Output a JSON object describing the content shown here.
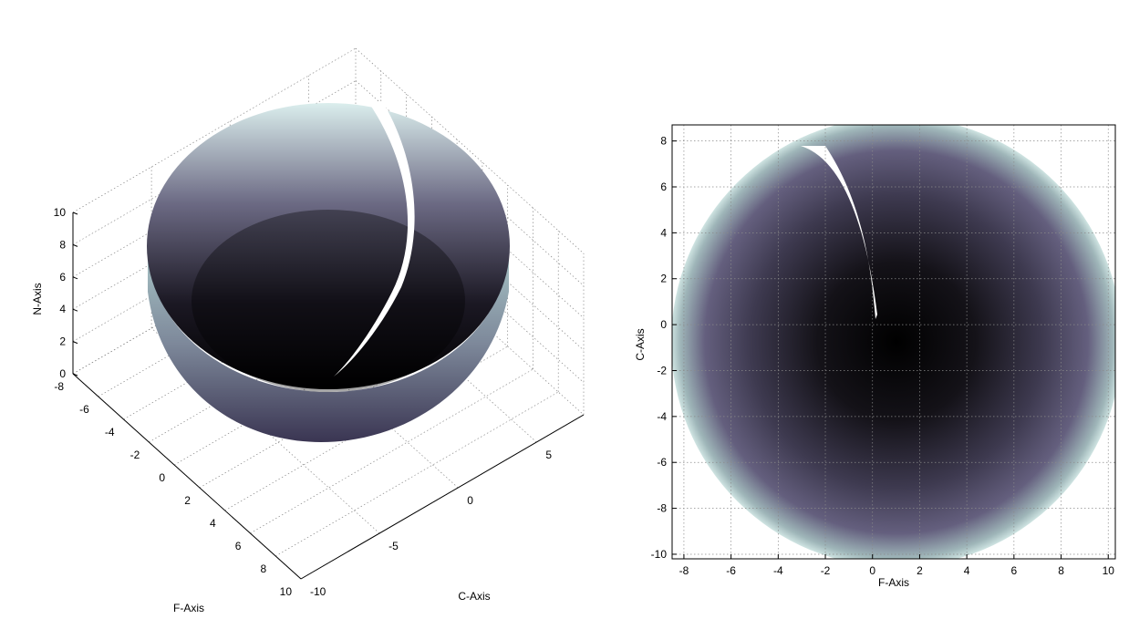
{
  "chart_data": [
    {
      "type": "surface",
      "view": "3d",
      "xlabel": "F-Axis",
      "ylabel": "C-Axis",
      "zlabel": "N-Axis",
      "x_ticks": [
        "-8",
        "-6",
        "-4",
        "-2",
        "0",
        "2",
        "4",
        "6",
        "8",
        "10"
      ],
      "y_ticks": [
        "-10",
        "-5",
        "0",
        "5"
      ],
      "z_ticks": [
        "0",
        "2",
        "4",
        "6",
        "8",
        "10"
      ],
      "xlim": [
        -8,
        10
      ],
      "ylim": [
        -10,
        8
      ],
      "zlim": [
        0,
        10
      ],
      "grid": true,
      "colormap": {
        "center": "#000000",
        "mid": "#4a4560",
        "edge": "#cfe6e4"
      },
      "shape": {
        "kind": "hemispherical bowl with crescent slit",
        "center_f": 0.9,
        "center_c": -0.8,
        "radius": 9.3
      }
    },
    {
      "type": "surface",
      "view": "top",
      "xlabel": "F-Axis",
      "ylabel": "C-Axis",
      "x_ticks": [
        "-8",
        "-6",
        "-4",
        "-2",
        "0",
        "2",
        "4",
        "6",
        "8",
        "10"
      ],
      "y_ticks": [
        "8",
        "6",
        "4",
        "2",
        "0",
        "-2",
        "-4",
        "-6",
        "-8",
        "-10"
      ],
      "xlim": [
        -8.5,
        10.3
      ],
      "ylim": [
        -10.2,
        8.7
      ],
      "grid": true,
      "colormap": {
        "center": "#000000",
        "mid": "#4a4560",
        "edge": "#cfe6e4"
      },
      "shape": {
        "kind": "disk with crescent slit",
        "center_f": 0.9,
        "center_c": -0.8,
        "radius": 9.3
      }
    }
  ]
}
